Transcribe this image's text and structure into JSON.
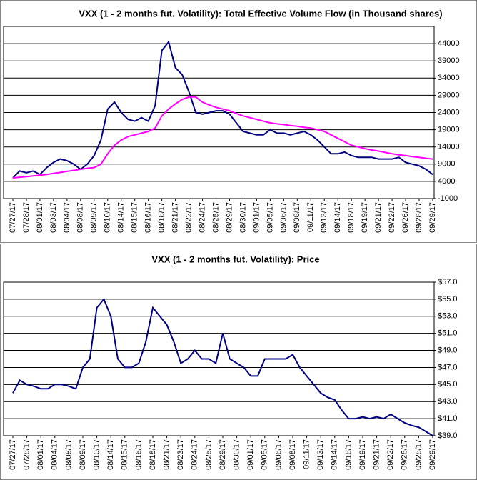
{
  "chart_data": [
    {
      "type": "line",
      "title": "VXX (1 - 2 months fut. Volatility): Total Effective Volume Flow (in Thousand shares)",
      "categories": [
        "07/27/17",
        null,
        "07/28/17",
        null,
        "08/01/17",
        null,
        "08/03/17",
        null,
        "08/04/17",
        null,
        "08/08/17",
        null,
        "08/09/17",
        null,
        "08/10/17",
        null,
        "08/14/17",
        null,
        "08/15/17",
        null,
        "08/16/17",
        null,
        "08/18/17",
        null,
        "08/21/17",
        null,
        "08/22/17",
        null,
        "08/24/17",
        null,
        "08/25/17",
        null,
        "08/29/17",
        null,
        "08/30/17",
        null,
        "09/01/17",
        null,
        "09/05/17",
        null,
        "09/06/17",
        null,
        "09/08/17",
        null,
        "09/11/17",
        null,
        "09/13/17",
        null,
        "09/14/17",
        null,
        "09/18/17",
        null,
        "09/19/17",
        null,
        "09/21/17",
        null,
        "09/22/17",
        null,
        "09/26/17",
        null,
        "09/28/17",
        null,
        "09/29/17"
      ],
      "series": [
        {
          "color": "#000080",
          "values": [
            5000,
            7000,
            6500,
            7000,
            6000,
            8000,
            9500,
            10500,
            10000,
            9000,
            7500,
            9000,
            11500,
            16000,
            25000,
            27000,
            24000,
            22000,
            21500,
            22500,
            21500,
            26000,
            42000,
            44500,
            37000,
            35000,
            30000,
            24000,
            23500,
            24000,
            24500,
            24500,
            23500,
            21000,
            18500,
            18000,
            17500,
            17500,
            19000,
            18000,
            18000,
            17500,
            18000,
            18500,
            17500,
            16000,
            14000,
            12000,
            12000,
            12500,
            11500,
            11000,
            11000,
            11000,
            10500,
            10500,
            10500,
            11000,
            9500,
            9000,
            8500,
            7500,
            6000
          ]
        },
        {
          "color": "#ff00ff",
          "values": [
            5000,
            5200,
            5400,
            5600,
            5800,
            6000,
            6300,
            6600,
            6900,
            7200,
            7500,
            7800,
            8000,
            9000,
            12000,
            14500,
            16000,
            17000,
            17500,
            18000,
            18500,
            19500,
            23000,
            25000,
            26500,
            27800,
            28500,
            28500,
            27000,
            26200,
            25500,
            25000,
            24500,
            23700,
            23000,
            22500,
            22000,
            21500,
            21000,
            20700,
            20500,
            20200,
            20000,
            19700,
            19500,
            19000,
            18500,
            17500,
            16500,
            15500,
            14500,
            14000,
            13500,
            13100,
            12800,
            12400,
            12000,
            11700,
            11500,
            11200,
            11000,
            10700,
            10500
          ]
        }
      ],
      "ylim": [
        -1000,
        49000
      ],
      "yticks": [
        44000,
        39000,
        34000,
        29000,
        24000,
        19000,
        14000,
        9000,
        4000,
        -1000
      ],
      "grid": true
    },
    {
      "type": "line",
      "title": "VXX (1 - 2 months fut. Volatility): Price",
      "categories": [
        "07/27/17",
        null,
        "07/28/17",
        null,
        "08/01/17",
        null,
        "08/04/17",
        null,
        "08/08/17",
        null,
        "08/09/17",
        null,
        "08/10/17",
        null,
        "08/14/17",
        null,
        "08/15/17",
        null,
        "08/16/17",
        null,
        "08/18/17",
        null,
        "08/21/17",
        null,
        "08/23/17",
        null,
        "08/24/17",
        null,
        "08/25/17",
        null,
        "08/29/17",
        null,
        "08/30/17",
        null,
        "09/01/17",
        null,
        "09/05/17",
        null,
        "09/06/17",
        null,
        "09/08/17",
        null,
        "09/11/17",
        null,
        "09/13/17",
        null,
        "09/14/17",
        null,
        "09/18/17",
        null,
        "09/19/17",
        null,
        "09/21/17",
        null,
        "09/22/17",
        null,
        "09/26/17",
        null,
        "09/28/17",
        null,
        "09/29/17"
      ],
      "series": [
        {
          "color": "#000080",
          "values": [
            44,
            45.5,
            45,
            44.8,
            44.5,
            44.5,
            45,
            45,
            44.8,
            44.5,
            47,
            48,
            54,
            55,
            53,
            48,
            47,
            47,
            47.5,
            50,
            54,
            53,
            52,
            50,
            47.5,
            48,
            49,
            48,
            48,
            47.5,
            51,
            48,
            47.5,
            47,
            46,
            46,
            48,
            48,
            48,
            48,
            48.5,
            47,
            46,
            45,
            44,
            43.5,
            43.2,
            42,
            41,
            41,
            41.2,
            41,
            41.2,
            41,
            41.5,
            41,
            40.5,
            40.2,
            40,
            39.5,
            39
          ]
        }
      ],
      "ylim": [
        39,
        57
      ],
      "yticks": [
        {
          "value": 57,
          "label": "$57.0"
        },
        {
          "value": 55,
          "label": "$55.0"
        },
        {
          "value": 53,
          "label": "$53.0"
        },
        {
          "value": 51,
          "label": "$51.0"
        },
        {
          "value": 49,
          "label": "$49.0"
        },
        {
          "value": 47,
          "label": "$47.0"
        },
        {
          "value": 45,
          "label": "$45.0"
        },
        {
          "value": 43,
          "label": "$43.0"
        },
        {
          "value": 41,
          "label": "$41.0"
        },
        {
          "value": 39,
          "label": "$39.0"
        }
      ],
      "grid": true
    }
  ]
}
